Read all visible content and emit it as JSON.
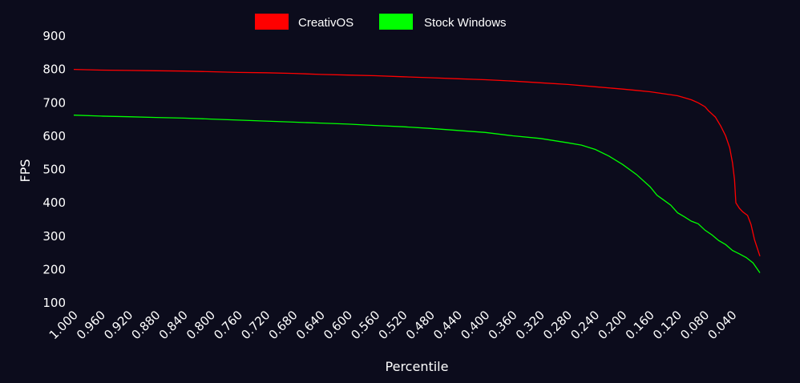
{
  "chart_data": {
    "type": "line",
    "title": "",
    "xlabel": "Percentile",
    "ylabel": "FPS",
    "x_reversed": true,
    "xlim": [
      1.0,
      0.0
    ],
    "ylim": [
      100,
      900
    ],
    "y_ticks": [
      100,
      200,
      300,
      400,
      500,
      600,
      700,
      800,
      900
    ],
    "x_ticks": [
      1.0,
      0.96,
      0.92,
      0.88,
      0.84,
      0.8,
      0.76,
      0.72,
      0.68,
      0.64,
      0.6,
      0.56,
      0.52,
      0.48,
      0.44,
      0.4,
      0.36,
      0.32,
      0.28,
      0.24,
      0.2,
      0.16,
      0.12,
      0.08,
      0.04
    ],
    "x_tick_labels": [
      "1.000",
      "0.960",
      "0.920",
      "0.880",
      "0.840",
      "0.800",
      "0.760",
      "0.720",
      "0.680",
      "0.640",
      "0.600",
      "0.560",
      "0.520",
      "0.480",
      "0.440",
      "0.400",
      "0.360",
      "0.320",
      "0.280",
      "0.240",
      "0.200",
      "0.160",
      "0.120",
      "0.080",
      "0.040"
    ],
    "grid": false,
    "legend_position": "top-center",
    "background_color": "#0c0c1c",
    "series": [
      {
        "name": "CreativOS",
        "color": "#ff0000",
        "points": [
          [
            1.0,
            800
          ],
          [
            0.96,
            798
          ],
          [
            0.92,
            797
          ],
          [
            0.88,
            796
          ],
          [
            0.84,
            795
          ],
          [
            0.8,
            793
          ],
          [
            0.76,
            791
          ],
          [
            0.72,
            790
          ],
          [
            0.68,
            788
          ],
          [
            0.64,
            785
          ],
          [
            0.6,
            783
          ],
          [
            0.56,
            781
          ],
          [
            0.52,
            778
          ],
          [
            0.48,
            775
          ],
          [
            0.44,
            772
          ],
          [
            0.4,
            769
          ],
          [
            0.36,
            765
          ],
          [
            0.32,
            760
          ],
          [
            0.28,
            755
          ],
          [
            0.24,
            748
          ],
          [
            0.2,
            741
          ],
          [
            0.18,
            737
          ],
          [
            0.16,
            733
          ],
          [
            0.14,
            727
          ],
          [
            0.12,
            721
          ],
          [
            0.1,
            709
          ],
          [
            0.09,
            700
          ],
          [
            0.08,
            688
          ],
          [
            0.075,
            676
          ],
          [
            0.065,
            657
          ],
          [
            0.057,
            630
          ],
          [
            0.05,
            601
          ],
          [
            0.044,
            565
          ],
          [
            0.04,
            520
          ],
          [
            0.037,
            470
          ],
          [
            0.035,
            400
          ],
          [
            0.03,
            384
          ],
          [
            0.025,
            373
          ],
          [
            0.018,
            362
          ],
          [
            0.013,
            335
          ],
          [
            0.008,
            290
          ],
          [
            0.0,
            240
          ]
        ]
      },
      {
        "name": "Stock Windows",
        "color": "#00ff00",
        "points": [
          [
            1.0,
            663
          ],
          [
            0.96,
            660
          ],
          [
            0.92,
            658
          ],
          [
            0.88,
            656
          ],
          [
            0.84,
            654
          ],
          [
            0.8,
            651
          ],
          [
            0.76,
            648
          ],
          [
            0.72,
            645
          ],
          [
            0.68,
            642
          ],
          [
            0.64,
            639
          ],
          [
            0.6,
            636
          ],
          [
            0.56,
            632
          ],
          [
            0.52,
            628
          ],
          [
            0.48,
            623
          ],
          [
            0.44,
            617
          ],
          [
            0.4,
            611
          ],
          [
            0.36,
            601
          ],
          [
            0.32,
            593
          ],
          [
            0.28,
            580
          ],
          [
            0.26,
            573
          ],
          [
            0.24,
            560
          ],
          [
            0.22,
            540
          ],
          [
            0.2,
            515
          ],
          [
            0.18,
            485
          ],
          [
            0.16,
            448
          ],
          [
            0.15,
            423
          ],
          [
            0.14,
            408
          ],
          [
            0.13,
            393
          ],
          [
            0.12,
            370
          ],
          [
            0.11,
            358
          ],
          [
            0.1,
            345
          ],
          [
            0.09,
            337
          ],
          [
            0.08,
            318
          ],
          [
            0.07,
            304
          ],
          [
            0.06,
            287
          ],
          [
            0.05,
            275
          ],
          [
            0.04,
            257
          ],
          [
            0.03,
            247
          ],
          [
            0.02,
            236
          ],
          [
            0.01,
            220
          ],
          [
            0.0,
            190
          ]
        ]
      }
    ]
  }
}
